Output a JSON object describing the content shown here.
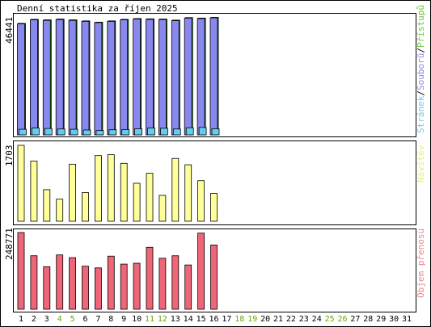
{
  "title": "Denní statistika za říjen 2025",
  "colors": {
    "frame": "#000000",
    "background": "#ffffff",
    "hits": "#66ccee",
    "files": "#8888ee",
    "pages": "#66ccee",
    "hits_top": "#00cc00",
    "visits": "#ffff99",
    "volume": "#ee6677",
    "weekend_label": "#66aa00",
    "weekday_label": "#000000",
    "label_pages": "#66ccee",
    "label_files": "#8888ee",
    "label_hits": "#66cc33",
    "label_visits": "#eeee77",
    "label_volume": "#ee8888"
  },
  "chart_data": [
    {
      "type": "bar",
      "name": "traffic",
      "y_max_label": "46441",
      "ylim": [
        0,
        46441
      ],
      "right_label": {
        "pages": "Stránek",
        "sep1": "/",
        "files": "Souborů",
        "sep2": "/",
        "hits": "Přístupů"
      },
      "categories": [
        "1",
        "2",
        "3",
        "4",
        "5",
        "6",
        "7",
        "8",
        "9",
        "10",
        "11",
        "12",
        "13",
        "14",
        "15",
        "16"
      ],
      "series": [
        {
          "name": "Přístupů",
          "values": [
            43900,
            45500,
            45300,
            45600,
            45300,
            44900,
            44400,
            44900,
            45500,
            45800,
            45700,
            45600,
            45200,
            46200,
            46000,
            46300
          ]
        },
        {
          "name": "Souborů",
          "values": [
            43700,
            45300,
            45100,
            45400,
            45100,
            44700,
            44200,
            44700,
            45300,
            45600,
            45500,
            45400,
            45000,
            46000,
            45800,
            46100
          ]
        },
        {
          "name": "Stránek",
          "values": [
            2200,
            2700,
            2500,
            2300,
            2200,
            1900,
            1700,
            2000,
            2100,
            2400,
            2700,
            2600,
            2300,
            2800,
            2900,
            2400
          ]
        }
      ]
    },
    {
      "type": "bar",
      "name": "visits",
      "y_max_label": "1703",
      "ylim": [
        0,
        1703
      ],
      "right_label": "Návštěv",
      "categories": [
        "1",
        "2",
        "3",
        "4",
        "5",
        "6",
        "7",
        "8",
        "9",
        "10",
        "11",
        "12",
        "13",
        "14",
        "15",
        "16"
      ],
      "series": [
        {
          "name": "Návštěv",
          "values": [
            1703,
            1350,
            708,
            495,
            1280,
            644,
            1473,
            1494,
            1299,
            852,
            1076,
            581,
            1409,
            1267,
            911,
            626
          ]
        }
      ]
    },
    {
      "type": "bar",
      "name": "volume",
      "y_max_label": "248771",
      "ylim": [
        0,
        248771
      ],
      "right_label": "Objem přenosu",
      "categories": [
        "1",
        "2",
        "3",
        "4",
        "5",
        "6",
        "7",
        "8",
        "9",
        "10",
        "11",
        "12",
        "13",
        "14",
        "15",
        "16"
      ],
      "series": [
        {
          "name": "Objem přenosu",
          "values": [
            248771,
            173516,
            137993,
            176246,
            167363,
            139678,
            134069,
            172271,
            146436,
            149232,
            200926,
            165278,
            173516,
            143634,
            246902,
            208403
          ]
        }
      ]
    }
  ],
  "days": [
    {
      "label": "1",
      "weekend": false
    },
    {
      "label": "2",
      "weekend": false
    },
    {
      "label": "3",
      "weekend": false
    },
    {
      "label": "4",
      "weekend": true
    },
    {
      "label": "5",
      "weekend": true
    },
    {
      "label": "6",
      "weekend": false
    },
    {
      "label": "7",
      "weekend": false
    },
    {
      "label": "8",
      "weekend": false
    },
    {
      "label": "9",
      "weekend": false
    },
    {
      "label": "10",
      "weekend": false
    },
    {
      "label": "11",
      "weekend": true
    },
    {
      "label": "12",
      "weekend": true
    },
    {
      "label": "13",
      "weekend": false
    },
    {
      "label": "14",
      "weekend": false
    },
    {
      "label": "15",
      "weekend": false
    },
    {
      "label": "16",
      "weekend": false
    },
    {
      "label": "17",
      "weekend": false
    },
    {
      "label": "18",
      "weekend": true
    },
    {
      "label": "19",
      "weekend": true
    },
    {
      "label": "20",
      "weekend": false
    },
    {
      "label": "21",
      "weekend": false
    },
    {
      "label": "22",
      "weekend": false
    },
    {
      "label": "23",
      "weekend": false
    },
    {
      "label": "24",
      "weekend": false
    },
    {
      "label": "25",
      "weekend": true
    },
    {
      "label": "26",
      "weekend": true
    },
    {
      "label": "27",
      "weekend": false
    },
    {
      "label": "28",
      "weekend": false
    },
    {
      "label": "29",
      "weekend": false
    },
    {
      "label": "30",
      "weekend": false
    },
    {
      "label": "31",
      "weekend": false
    }
  ]
}
